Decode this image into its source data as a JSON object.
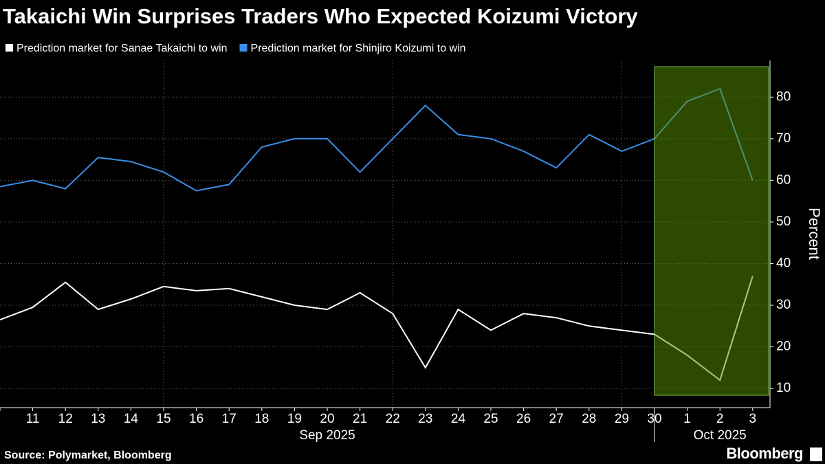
{
  "chart_data": {
    "type": "line",
    "title": "Takaichi Win Surprises Traders Who Expected Koizumi Victory",
    "categories": [
      null,
      "11",
      "12",
      "13",
      "14",
      "15",
      "16",
      "17",
      "18",
      "19",
      "20",
      "21",
      "22",
      "23",
      "24",
      "25",
      "26",
      "27",
      "28",
      "29",
      "30",
      "1",
      "2",
      "3"
    ],
    "x_groups": [
      {
        "label": "Sep 2025",
        "count": 21
      },
      {
        "label": "Oct 2025",
        "count": 3
      }
    ],
    "series": [
      {
        "name": "Prediction market for Sanae Takaichi to win",
        "color": "#ffffff",
        "values": [
          26.5,
          29.5,
          35.5,
          29,
          31.5,
          34.5,
          33.5,
          34,
          32,
          30,
          29,
          33,
          28,
          15,
          29,
          24,
          28,
          27,
          25,
          24,
          23,
          18,
          12,
          37
        ]
      },
      {
        "name": "Prediction market for Shinjiro Koizumi to win",
        "color": "#3a8fe8",
        "values": [
          58.5,
          60,
          58,
          65.5,
          64.5,
          62,
          57.5,
          59,
          68,
          70,
          70,
          62,
          70,
          78,
          71,
          70,
          67,
          63,
          71,
          67,
          70,
          79,
          82,
          60
        ]
      }
    ],
    "y_label": "Percent",
    "ylim": [
      5.4,
      88.8
    ],
    "yticks": [
      10,
      20,
      30,
      40,
      50,
      60,
      70,
      80
    ],
    "grid": true,
    "source": "Source: Polymarket, Bloomberg",
    "brand": "Bloomberg"
  }
}
